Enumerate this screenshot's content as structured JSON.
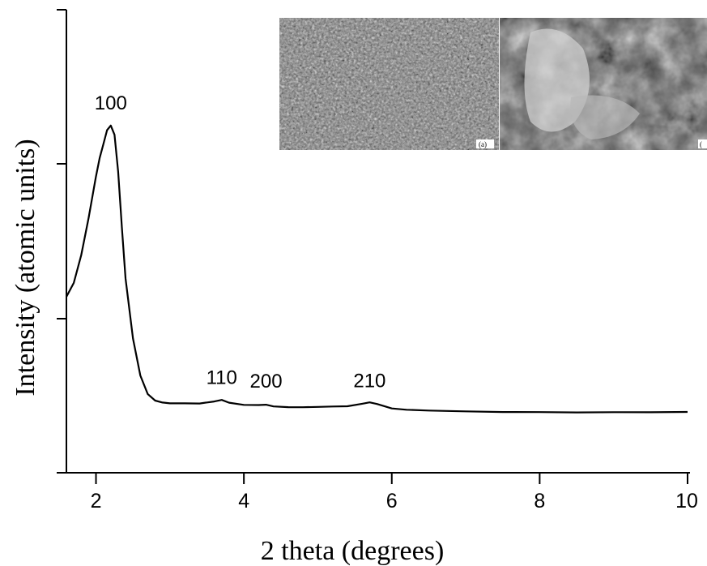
{
  "chart_data": {
    "type": "line",
    "title": "",
    "xlabel": "2 theta (degrees)",
    "ylabel": "Intensity (atomic units)",
    "xlim": [
      1.6,
      10
    ],
    "x_ticks": [
      "2",
      "4",
      "6",
      "8",
      "10"
    ],
    "y_ticks_labeled": false,
    "grid": false,
    "legend": "none",
    "line_color": "#000000",
    "series": [
      {
        "x": [
          1.6,
          1.7,
          1.8,
          1.9,
          2.0,
          2.05,
          2.1,
          2.15,
          2.2,
          2.25,
          2.3,
          2.35,
          2.4,
          2.5,
          2.6,
          2.7,
          2.8,
          2.9,
          3.0,
          3.2,
          3.4,
          3.6,
          3.7,
          3.8,
          4.0,
          4.2,
          4.3,
          4.4,
          4.6,
          4.8,
          5.0,
          5.2,
          5.4,
          5.6,
          5.7,
          5.8,
          6.0,
          6.2,
          6.5,
          7.0,
          7.5,
          8.0,
          8.5,
          9.0,
          9.5,
          10.0
        ],
        "y": [
          0.38,
          0.41,
          0.47,
          0.55,
          0.64,
          0.68,
          0.71,
          0.74,
          0.75,
          0.73,
          0.65,
          0.53,
          0.42,
          0.29,
          0.21,
          0.17,
          0.155,
          0.15,
          0.148,
          0.148,
          0.148,
          0.153,
          0.157,
          0.152,
          0.148,
          0.148,
          0.149,
          0.145,
          0.143,
          0.142,
          0.142,
          0.142,
          0.142,
          0.147,
          0.15,
          0.147,
          0.138,
          0.136,
          0.135,
          0.134,
          0.133,
          0.133,
          0.132,
          0.132,
          0.131,
          0.131
        ]
      }
    ],
    "peak_labels": [
      {
        "text": "100",
        "x": 2.2,
        "y": 0.75
      },
      {
        "text": "110",
        "x": 3.7,
        "y": 0.157
      },
      {
        "text": "200",
        "x": 4.3,
        "y": 0.149
      },
      {
        "text": "210",
        "x": 5.7,
        "y": 0.15
      }
    ]
  },
  "inset": {
    "panels": [
      {
        "letter": "(a)"
      },
      {
        "letter": "("
      }
    ]
  }
}
